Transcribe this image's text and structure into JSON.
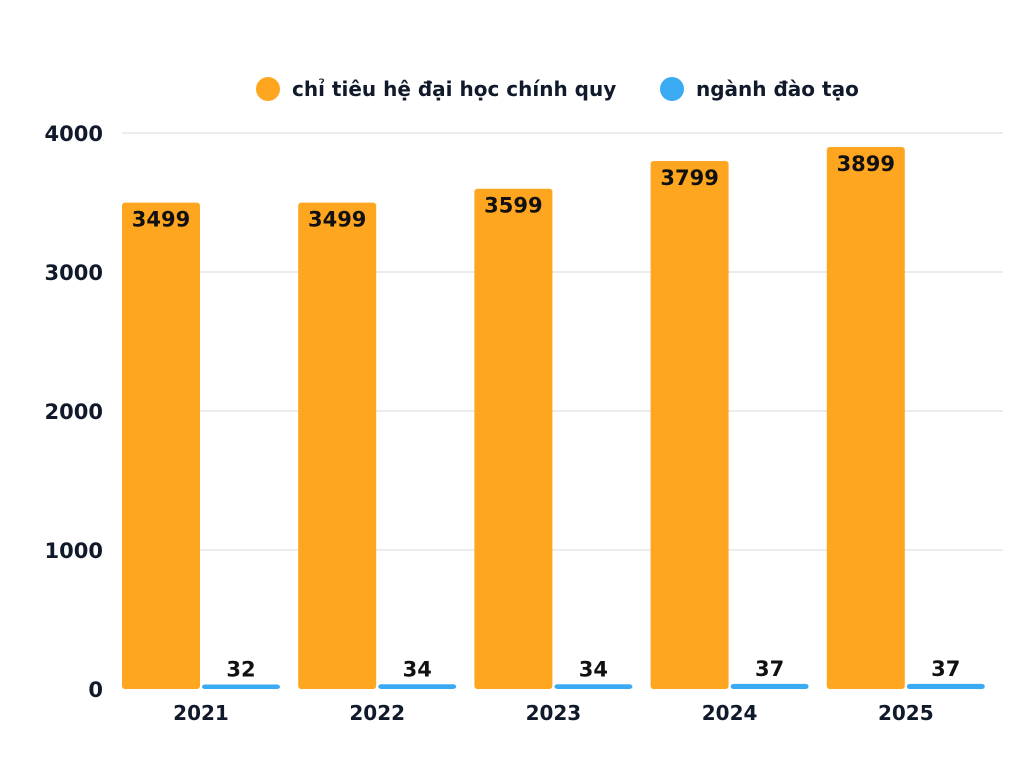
{
  "chart_data": {
    "type": "bar",
    "categories": [
      "2021",
      "2022",
      "2023",
      "2024",
      "2025"
    ],
    "series": [
      {
        "name": "chỉ tiêu hệ đại học chính quy",
        "values": [
          3499,
          3499,
          3599,
          3799,
          3899
        ],
        "color": "#FFA620"
      },
      {
        "name": "ngành đào tạo",
        "values": [
          32,
          34,
          34,
          37,
          37
        ],
        "color": "#3AABF2"
      }
    ],
    "ylim": [
      0,
      4000
    ],
    "yticks": [
      "0",
      "1000",
      "2000",
      "3000",
      "4000"
    ],
    "grid": true,
    "legend": "top"
  }
}
